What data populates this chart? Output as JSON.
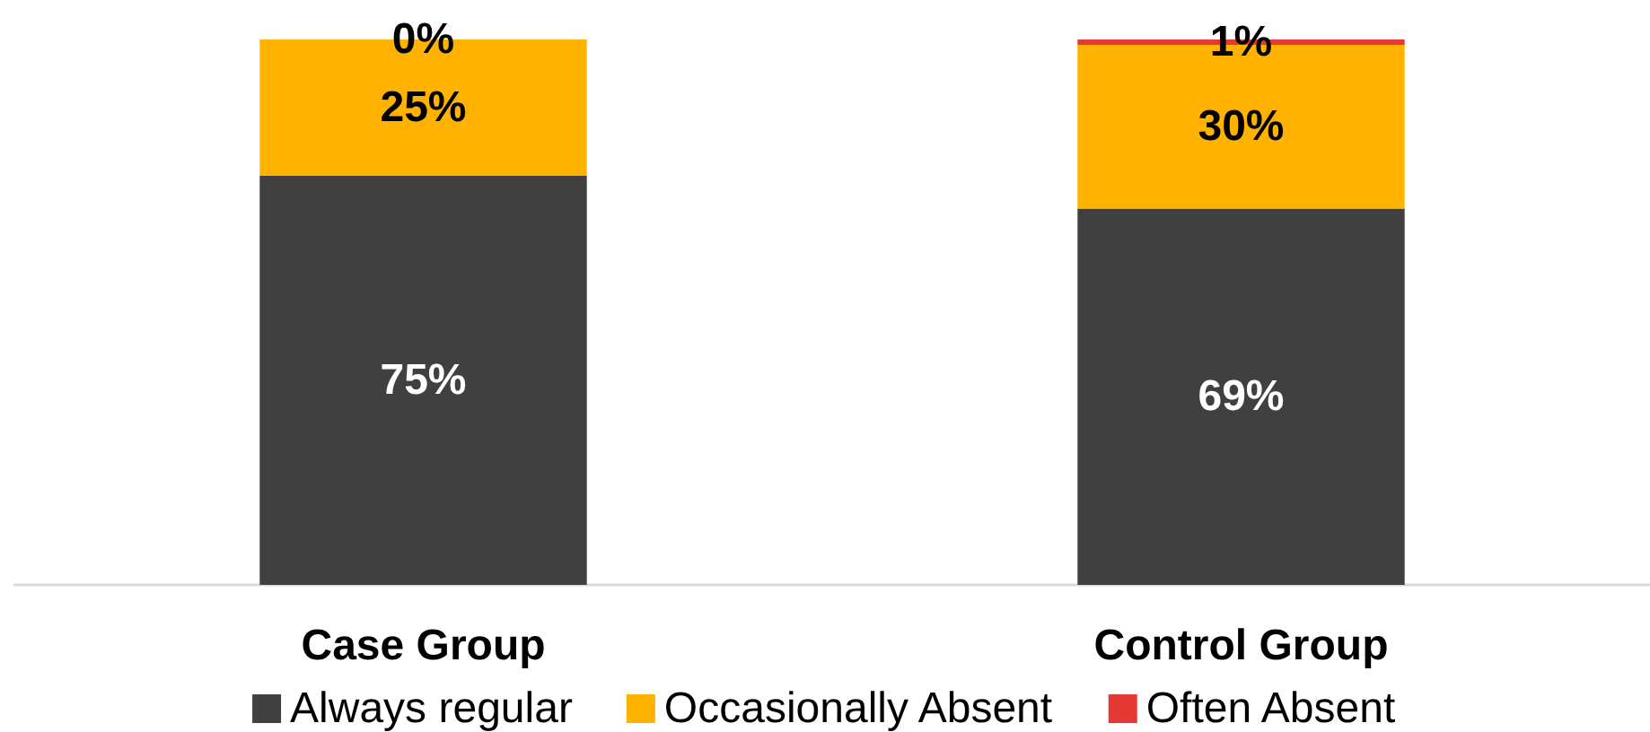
{
  "chart_data": {
    "type": "bar",
    "stacked": true,
    "categories": [
      "Case Group",
      "Control Group"
    ],
    "series": [
      {
        "name": "Always regular",
        "color": "#404040",
        "values": [
          75,
          69
        ],
        "value_labels": [
          "75%",
          "69%"
        ]
      },
      {
        "name": "Occasionally Absent",
        "color": "#ffb300",
        "values": [
          25,
          30
        ],
        "value_labels": [
          "25%",
          "30%"
        ]
      },
      {
        "name": "Often Absent",
        "color": "#e53935",
        "values": [
          0,
          1
        ],
        "value_labels": [
          "0%",
          "1%"
        ]
      }
    ],
    "ylim": [
      0,
      100
    ],
    "tick_labels": "x",
    "legend": "bottom"
  }
}
